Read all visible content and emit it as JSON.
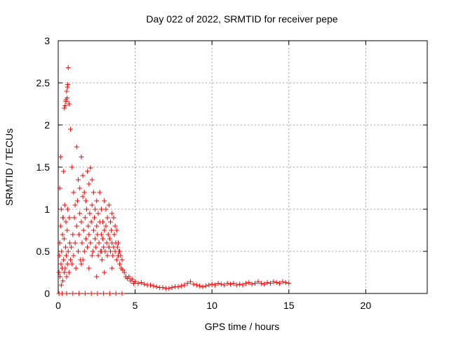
{
  "chart_data": {
    "type": "scatter",
    "title": "Day 022 of 2022, SRMTID for receiver pepe",
    "xlabel": "GPS time / hours",
    "ylabel": "SRMTID / TECUs",
    "xlim": [
      0,
      24
    ],
    "ylim": [
      0,
      3
    ],
    "xticks": [
      0,
      5,
      10,
      15,
      20
    ],
    "yticks": [
      0,
      0.5,
      1,
      1.5,
      2,
      2.5,
      3
    ],
    "xtick_labels": [
      "0",
      "5",
      "10",
      "15",
      "20"
    ],
    "ytick_labels": [
      "0",
      "0.5",
      "1",
      "1.5",
      "2",
      "2.5",
      "3"
    ],
    "grid": true,
    "marker": "+",
    "series": [
      {
        "name": "SRMTID",
        "color": "#ff0000",
        "x": [
          0.05,
          0.08,
          0.1,
          0.12,
          0.15,
          0.18,
          0.2,
          0.22,
          0.25,
          0.28,
          0.3,
          0.32,
          0.35,
          0.38,
          0.4,
          0.42,
          0.45,
          0.48,
          0.5,
          0.52,
          0.55,
          0.58,
          0.6,
          0.62,
          0.65,
          0.7,
          0.72,
          0.75,
          0.8,
          0.85,
          0.9,
          0.95,
          1.0,
          1.05,
          1.1,
          1.15,
          1.2,
          1.25,
          1.3,
          1.35,
          1.4,
          1.45,
          1.5,
          1.55,
          1.6,
          1.65,
          1.7,
          1.75,
          1.8,
          1.85,
          1.9,
          1.95,
          2.0,
          2.05,
          2.1,
          2.15,
          2.2,
          2.25,
          2.3,
          2.35,
          2.4,
          2.45,
          2.5,
          2.55,
          2.6,
          2.65,
          2.7,
          2.75,
          2.8,
          2.85,
          2.9,
          2.95,
          3.0,
          3.05,
          3.1,
          3.15,
          3.2,
          3.25,
          3.3,
          3.35,
          3.4,
          3.45,
          3.5,
          3.55,
          3.6,
          3.65,
          3.7,
          3.75,
          3.8,
          3.85,
          3.9,
          3.95,
          4.0,
          4.05,
          4.1,
          4.15,
          4.2,
          4.3,
          4.4,
          4.5,
          4.6,
          4.7,
          4.8,
          4.9,
          5.0,
          5.2,
          5.4,
          5.6,
          5.8,
          6.0,
          6.2,
          6.4,
          6.6,
          6.8,
          7.0,
          7.2,
          7.4,
          7.6,
          7.8,
          8.0,
          8.2,
          8.4,
          8.6,
          8.8,
          9.0,
          9.2,
          9.4,
          9.6,
          9.8,
          10.0,
          10.2,
          10.4,
          10.6,
          10.8,
          11.0,
          11.2,
          11.4,
          11.6,
          11.8,
          12.0,
          12.2,
          12.4,
          12.6,
          12.8,
          13.0,
          13.2,
          13.4,
          13.6,
          13.8,
          14.0,
          14.2,
          14.4,
          14.6,
          14.8,
          15.0,
          0.1,
          0.2,
          0.3,
          0.4,
          0.5,
          0.55,
          0.6,
          0.65,
          0.7,
          0.8,
          0.9,
          1.0,
          1.1,
          1.2,
          1.3,
          1.4,
          1.5,
          1.6,
          1.7,
          1.8,
          1.9,
          2.0,
          2.1,
          2.2,
          2.3,
          2.4,
          2.5,
          2.6,
          2.7,
          2.8,
          2.9,
          3.0,
          3.1,
          3.2,
          3.3,
          3.4,
          3.5,
          3.6,
          3.7,
          3.8,
          3.9,
          4.0,
          0.15,
          0.35,
          0.45,
          0.5,
          0.58,
          0.62,
          1.5,
          2.0,
          2.5,
          3.0,
          3.5,
          4.0,
          1.6,
          2.2,
          2.8,
          3.3,
          0.05,
          0.25,
          0.55,
          0.95,
          1.35,
          1.75,
          2.15,
          2.55,
          2.95,
          3.35,
          3.75,
          4.15
        ],
        "y": [
          0.25,
          0.45,
          0.6,
          0.2,
          0.8,
          0.35,
          0.1,
          0.5,
          0.3,
          0.7,
          0.15,
          0.9,
          0.4,
          0.65,
          0.25,
          1.05,
          0.3,
          0.55,
          0.85,
          0.45,
          0.2,
          0.75,
          0.35,
          1.0,
          0.5,
          0.25,
          0.9,
          0.6,
          0.4,
          0.55,
          0.35,
          0.7,
          0.45,
          0.9,
          0.6,
          0.3,
          0.8,
          1.1,
          0.5,
          0.7,
          0.95,
          0.4,
          0.85,
          0.6,
          1.15,
          0.75,
          0.5,
          0.9,
          0.65,
          1.0,
          0.55,
          0.8,
          0.7,
          0.95,
          0.6,
          0.85,
          1.05,
          0.5,
          0.75,
          0.9,
          0.65,
          0.55,
          0.8,
          0.7,
          0.45,
          0.6,
          0.85,
          0.5,
          0.7,
          0.4,
          0.65,
          0.55,
          0.75,
          0.5,
          0.8,
          0.6,
          0.45,
          0.7,
          0.55,
          0.65,
          0.5,
          0.75,
          0.6,
          0.45,
          0.55,
          0.7,
          0.5,
          0.6,
          0.4,
          0.55,
          0.45,
          0.5,
          0.35,
          0.45,
          0.3,
          0.4,
          0.28,
          0.25,
          0.2,
          0.18,
          0.2,
          0.15,
          0.17,
          0.12,
          0.14,
          0.12,
          0.13,
          0.11,
          0.1,
          0.1,
          0.09,
          0.08,
          0.07,
          0.07,
          0.06,
          0.06,
          0.07,
          0.08,
          0.08,
          0.09,
          0.1,
          0.12,
          0.14,
          0.11,
          0.1,
          0.09,
          0.08,
          0.09,
          0.1,
          0.11,
          0.1,
          0.12,
          0.11,
          0.1,
          0.12,
          0.11,
          0.12,
          0.1,
          0.11,
          0.1,
          0.12,
          0.13,
          0.11,
          0.12,
          0.14,
          0.12,
          0.11,
          0.13,
          0.12,
          0.14,
          0.13,
          0.12,
          0.14,
          0.13,
          0.12,
          1.25,
          1.0,
          0.9,
          2.2,
          2.3,
          2.4,
          2.45,
          2.68,
          2.25,
          1.95,
          1.5,
          1.2,
          1.05,
          1.74,
          1.35,
          1.25,
          1.62,
          1.4,
          1.2,
          1.1,
          1.45,
          1.3,
          1.49,
          1.35,
          1.2,
          1.0,
          1.1,
          0.95,
          1.2,
          1.0,
          0.85,
          1.1,
          1.0,
          0.9,
          1.05,
          0.85,
          0.95,
          0.9,
          0.8,
          0.75,
          0.6,
          0.5,
          1.62,
          1.45,
          2.23,
          2.28,
          2.32,
          2.48,
          0.35,
          0.3,
          0.2,
          0.25,
          0.3,
          0.35,
          0.4,
          0.45,
          0.5,
          0.55,
          0.0,
          0.0,
          0.0,
          0.0,
          0.0,
          0.0,
          0.0,
          0.0,
          0.0,
          0.0,
          0.0,
          0.0
        ]
      }
    ]
  }
}
